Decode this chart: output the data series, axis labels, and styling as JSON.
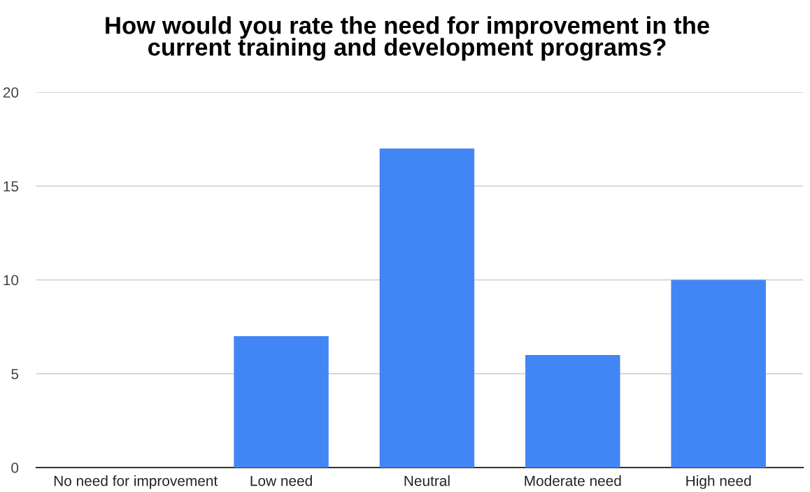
{
  "chart_data": {
    "type": "bar",
    "title": "How would you rate the need for improvement in the\ncurrent training and development programs?",
    "categories": [
      "No need for improvement",
      "Low need",
      "Neutral",
      "Moderate need",
      "High need"
    ],
    "values": [
      0,
      7,
      17,
      6,
      10
    ],
    "color": "#4285f4",
    "ylim": [
      0,
      20
    ],
    "yticks": [
      0,
      5,
      10,
      15,
      20
    ],
    "grid": "y"
  }
}
